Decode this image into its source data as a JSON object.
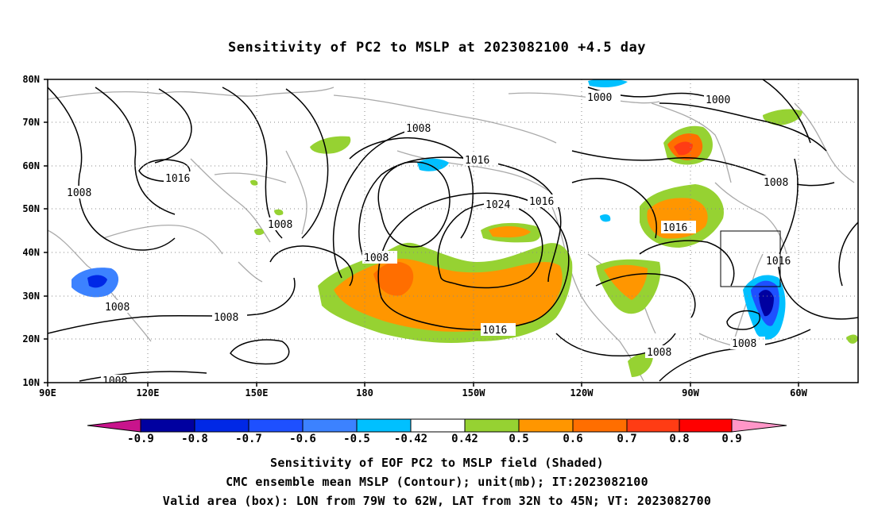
{
  "title": "Sensitivity of PC2 to MSLP at 2023082100 +4.5 day",
  "lat_labels": [
    "80N",
    "70N",
    "60N",
    "50N",
    "40N",
    "30N",
    "20N",
    "10N"
  ],
  "lon_labels": [
    "90E",
    "120E",
    "150E",
    "180",
    "150W",
    "120W",
    "90W",
    "60W"
  ],
  "isobar_labels": [
    "1000",
    "1000",
    "1008",
    "1016",
    "1008",
    "1016",
    "1008",
    "1024",
    "1016",
    "1008",
    "1016",
    "1016",
    "1008",
    "1008",
    "1008",
    "1008",
    "1016",
    "1008",
    "1008"
  ],
  "colorbar": {
    "labels": [
      "-0.9",
      "-0.8",
      "-0.7",
      "-0.6",
      "-0.5",
      "-0.42",
      "0.42",
      "0.5",
      "0.6",
      "0.7",
      "0.8",
      "0.9"
    ],
    "colors": [
      "#0000a0",
      "#0028e6",
      "#1e50ff",
      "#3c82ff",
      "#00c0ff",
      "#ffffff",
      "#96d232",
      "#ff9600",
      "#ff6e00",
      "#ff3c14",
      "#ff0000"
    ],
    "low_extend_color": "#c8148c",
    "high_extend_color": "#ff96c8"
  },
  "captions": [
    "Sensitivity of EOF PC2 to MSLP field (Shaded)",
    "CMC ensemble mean MSLP (Contour); unit(mb); IT:2023082100",
    "Valid area (box): LON from 79W to 62W, LAT from 32N to 45N; VT: 2023082700"
  ]
}
